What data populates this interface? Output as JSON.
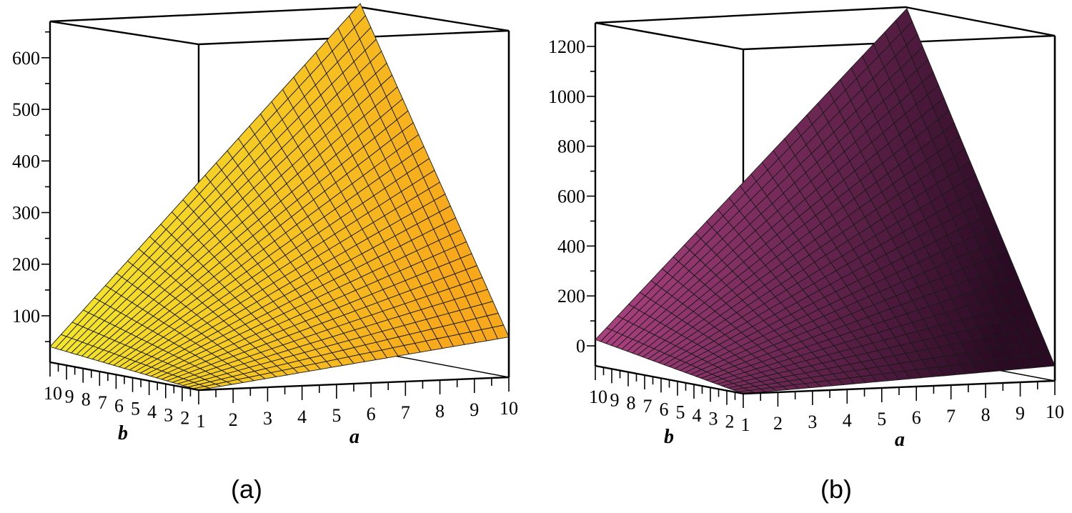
{
  "chart_data": [
    {
      "type": "surface3d",
      "caption": "(a)",
      "xlabel": "a",
      "ylabel": "b",
      "x_ticks": [
        "1",
        "2",
        "3",
        "4",
        "5",
        "6",
        "7",
        "8",
        "9",
        "10"
      ],
      "y_ticks": [
        "2",
        "3",
        "4",
        "5",
        "6",
        "7",
        "8",
        "9",
        "10"
      ],
      "z_ticks": [
        "100",
        "200",
        "300",
        "400",
        "500",
        "600"
      ],
      "xlim": [
        1,
        10
      ],
      "ylim": [
        1,
        10
      ],
      "zlim": [
        10,
        680
      ],
      "grid_lines": 28,
      "corner_values": {
        "a1_b1": 10,
        "a10_b1": 88,
        "a1_b10": 40,
        "a10_b10": 680
      },
      "surface_colors": [
        "#f4e52a",
        "#f7a81b"
      ]
    },
    {
      "type": "surface3d",
      "caption": "(b)",
      "xlabel": "a",
      "ylabel": "b",
      "x_ticks": [
        "1",
        "2",
        "3",
        "4",
        "5",
        "6",
        "7",
        "8",
        "9",
        "10"
      ],
      "y_ticks": [
        "2",
        "3",
        "4",
        "5",
        "6",
        "7",
        "8",
        "9",
        "10"
      ],
      "z_ticks": [
        "0",
        "200",
        "400",
        "600",
        "800",
        "1000",
        "1200"
      ],
      "xlim": [
        1,
        10
      ],
      "ylim": [
        1,
        10
      ],
      "zlim": [
        -80,
        1300
      ],
      "grid_lines": 28,
      "corner_values": {
        "a1_b1": -80,
        "a10_b1": -20,
        "a1_b10": 25,
        "a10_b10": 1300
      },
      "surface_colors": [
        "#a8407e",
        "#2b0b24"
      ]
    }
  ]
}
